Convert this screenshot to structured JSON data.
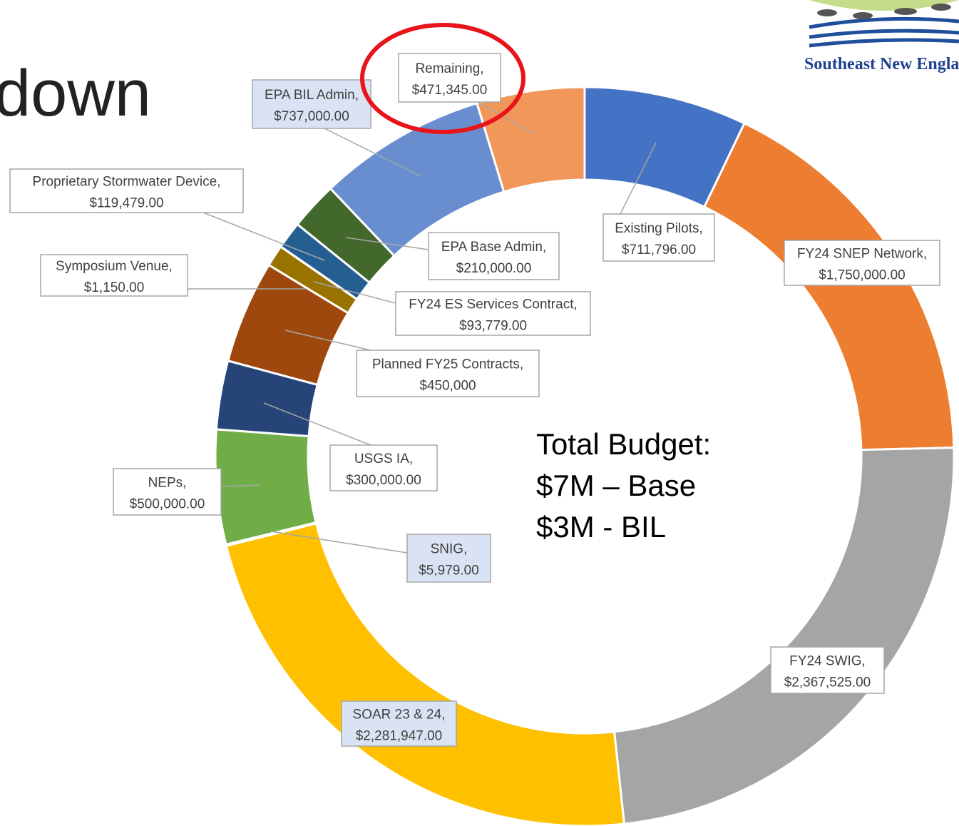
{
  "slide_title": "down",
  "body_text": [
    "Total Budget:",
    "$7M – Base",
    "$3M - BIL"
  ],
  "logo_text": "Southeast New Englan",
  "chart_data": {
    "type": "donut",
    "categories": [
      "Existing Pilots,",
      "FY24 SNEP Network,",
      "FY24 SWIG,",
      "SOAR 23 & 24,",
      "SNIG,",
      "NEPs,",
      "USGS IA,",
      "Planned FY25 Contracts,",
      "FY24 ES Services Contract,",
      "Symposium Venue,",
      "Proprietary Stormwater Device,",
      "EPA Base Admin,",
      "EPA BIL Admin,",
      "Remaining,"
    ],
    "values": [
      711796,
      1750000,
      2367525,
      2281947,
      5979,
      500000,
      300000,
      450000,
      93779,
      1150,
      119479,
      210000,
      737000,
      471345
    ],
    "value_labels": [
      "$711,796.00",
      "$1,750,000.00",
      "$2,367,525.00",
      "$2,281,947.00",
      "$5,979.00",
      "$500,000.00",
      "$300,000.00",
      "$450,000",
      "$93,779.00",
      "$1,150.00",
      "$119,479.00",
      "$210,000.00",
      "$737,000.00",
      "$471,345.00"
    ],
    "colors": [
      "#4472c4",
      "#ed7d31",
      "#a5a5a5",
      "#ffc000",
      "#5b9bd5",
      "#70ad47",
      "#264478",
      "#9e480e",
      "#997300",
      "#636363",
      "#255e91",
      "#43682b",
      "#698ed0",
      "#f1975a"
    ]
  }
}
